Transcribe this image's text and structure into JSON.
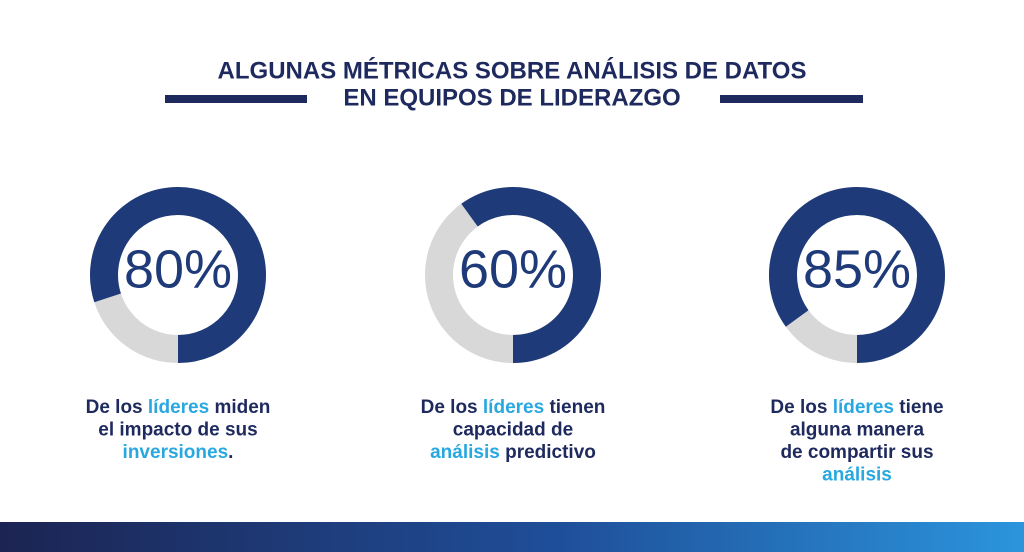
{
  "header": {
    "title_lines": [
      "ALGUNAS MÉTRICAS SOBRE ANÁLISIS DE DATOS",
      "EN EQUIPOS DE LIDERAZGO"
    ]
  },
  "chart_data": [
    {
      "type": "donut",
      "values": [
        80
      ],
      "value_labels": [
        "80%"
      ],
      "color": "#1e3a78",
      "track_color": "#d8d8d8",
      "accent_color": "#29a8e0",
      "caption": [
        [
          {
            "text": "De los "
          },
          {
            "text": "líderes",
            "accent": true
          },
          {
            "text": " miden"
          }
        ],
        [
          {
            "text": "el impacto de sus"
          }
        ],
        [
          {
            "text": "inversiones",
            "accent": true
          },
          {
            "text": "."
          }
        ]
      ]
    },
    {
      "type": "donut",
      "values": [
        60
      ],
      "value_labels": [
        "60%"
      ],
      "color": "#1e3a78",
      "track_color": "#d8d8d8",
      "accent_color": "#29a8e0",
      "caption": [
        [
          {
            "text": "De los "
          },
          {
            "text": "líderes",
            "accent": true
          },
          {
            "text": " tienen"
          }
        ],
        [
          {
            "text": "capacidad de"
          }
        ],
        [
          {
            "text": "análisis",
            "accent": true
          },
          {
            "text": " predictivo"
          }
        ]
      ]
    },
    {
      "type": "donut",
      "values": [
        85
      ],
      "value_labels": [
        "85%"
      ],
      "color": "#1e3a78",
      "track_color": "#d8d8d8",
      "accent_color": "#29a8e0",
      "caption": [
        [
          {
            "text": "De los "
          },
          {
            "text": "líderes",
            "accent": true
          },
          {
            "text": " tiene"
          }
        ],
        [
          {
            "text": "alguna manera"
          }
        ],
        [
          {
            "text": "de compartir sus"
          }
        ],
        [
          {
            "text": "análisis",
            "accent": true
          }
        ]
      ]
    }
  ]
}
